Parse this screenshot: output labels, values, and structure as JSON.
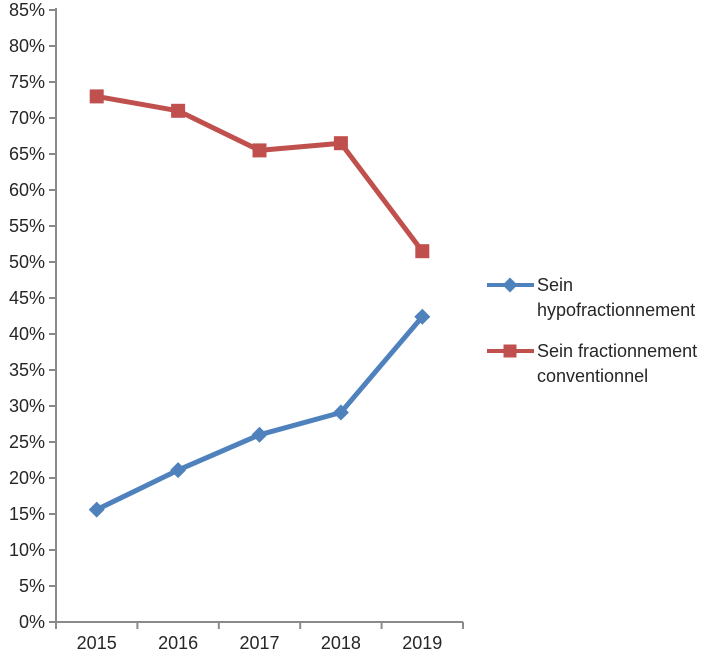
{
  "chart_data": {
    "type": "line",
    "categories": [
      "2015",
      "2016",
      "2017",
      "2018",
      "2019"
    ],
    "series": [
      {
        "name": "Sein hypofractionnement",
        "values": [
          15.6,
          21.1,
          26.0,
          29.1,
          42.4
        ],
        "color": "#4F81BD",
        "marker": "diamond"
      },
      {
        "name": "Sein fractionnement conventionnel",
        "values": [
          73.0,
          71.0,
          65.5,
          66.5,
          51.5
        ],
        "color": "#C0504D",
        "marker": "square"
      }
    ],
    "title": "",
    "xlabel": "",
    "ylabel": "",
    "ylim": [
      0,
      85
    ],
    "ytick_step": 5,
    "ytick_labels": [
      "0%",
      "5%",
      "10%",
      "15%",
      "20%",
      "25%",
      "30%",
      "35%",
      "40%",
      "45%",
      "50%",
      "55%",
      "60%",
      "65%",
      "70%",
      "75%",
      "80%",
      "85%"
    ],
    "grid": false,
    "legend_position": "right"
  },
  "colors": {
    "axis": "#8A8A8A",
    "tick_text": "#262626",
    "background": "#FFFFFF"
  }
}
